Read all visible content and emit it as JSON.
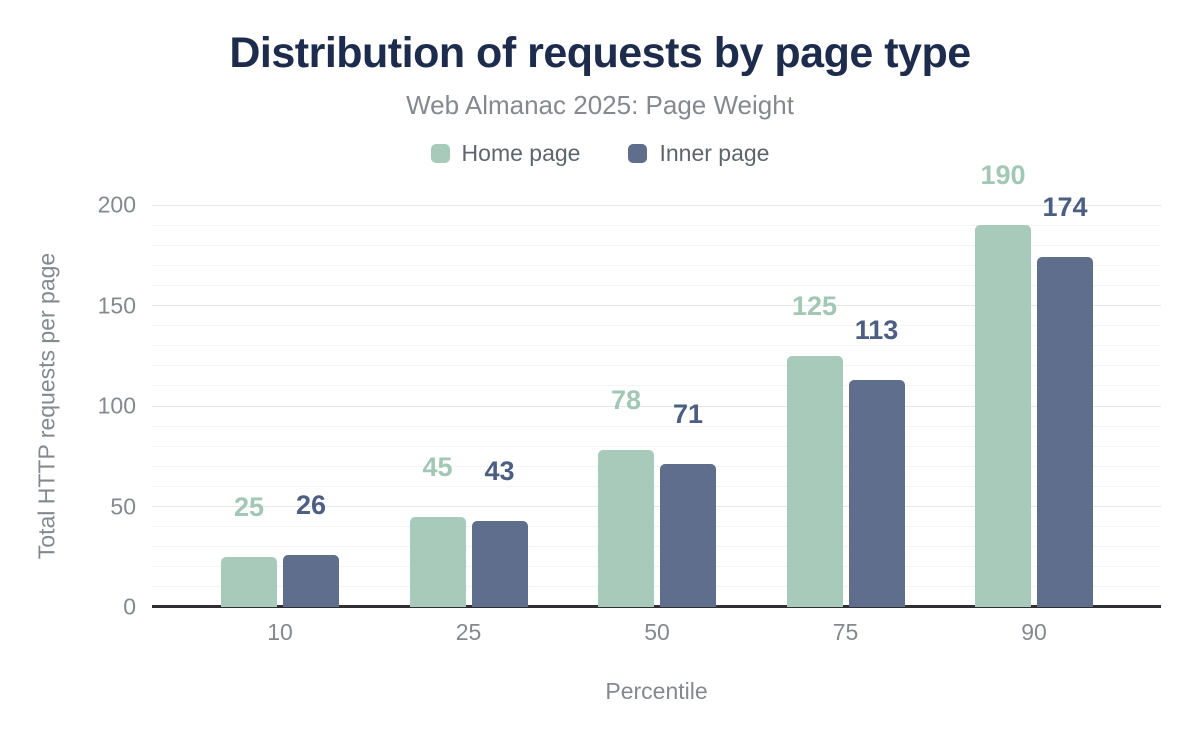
{
  "chart_data": {
    "type": "bar",
    "title": "Distribution of requests by page type",
    "subtitle": "Web Almanac 2025: Page Weight",
    "xlabel": "Percentile",
    "ylabel": "Total HTTP requests per page",
    "categories": [
      "10",
      "25",
      "50",
      "75",
      "90"
    ],
    "series": [
      {
        "name": "Home page",
        "color": "#a8cabb",
        "label_color": "#a2c7b4",
        "values": [
          25,
          45,
          78,
          125,
          190
        ]
      },
      {
        "name": "Inner page",
        "color": "#5f6e8c",
        "label_color": "#4d5e83",
        "values": [
          26,
          43,
          71,
          113,
          174
        ]
      }
    ],
    "ylim": [
      0,
      200
    ],
    "yticks": [
      0,
      50,
      100,
      150,
      200
    ],
    "grid": {
      "major_every": 50,
      "minor_every": 10,
      "legend_position": "top"
    }
  },
  "colors": {
    "title": "#1d2c4c",
    "muted": "#85898f",
    "legend_text": "#5f656d",
    "axis_line": "#2f2f34",
    "grid_major": "#e6e6e8",
    "grid_minor": "#f4f4f6",
    "bg": "#ffffff"
  }
}
